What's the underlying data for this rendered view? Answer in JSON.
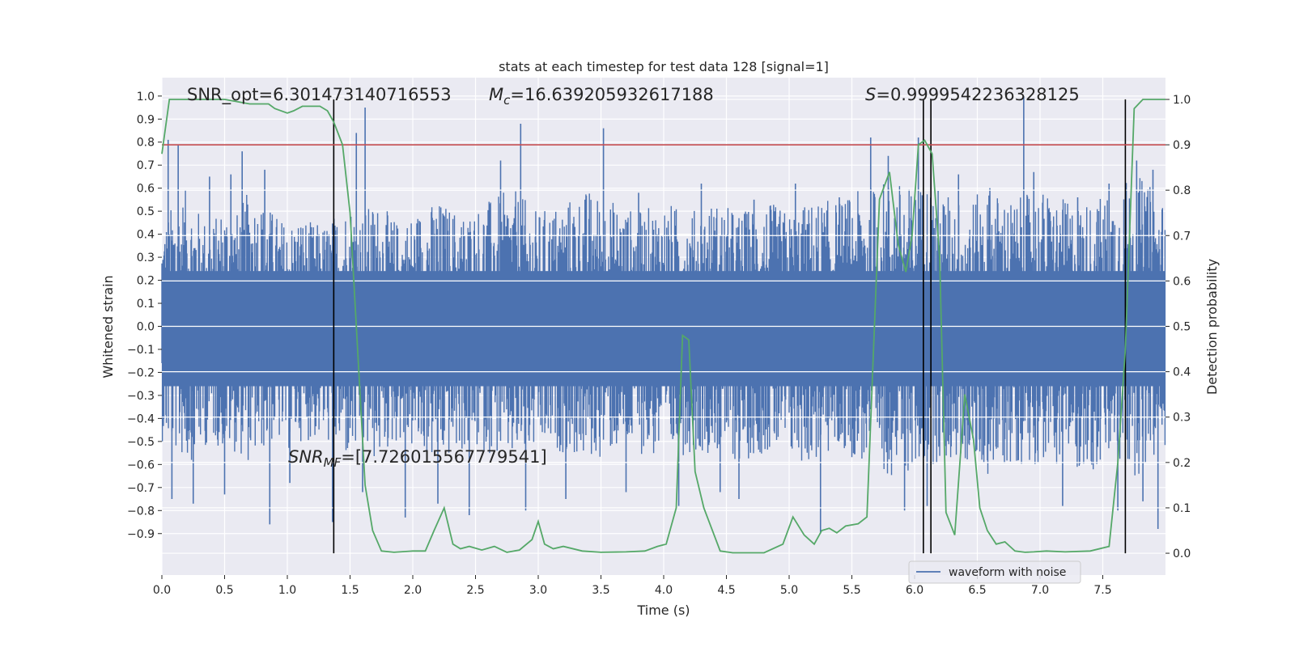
{
  "chart_data": {
    "type": "line",
    "title": "stats at each timestep for test data 128 [signal=1]",
    "xlabel": "Time (s)",
    "ylabel": "Whitened strain",
    "y2label": "Detection probability",
    "xlim": [
      0.0,
      8.0
    ],
    "ylim": [
      -1.08,
      1.08
    ],
    "y2lim": [
      -0.048,
      1.048
    ],
    "x_ticks": [
      0.0,
      0.5,
      1.0,
      1.5,
      2.0,
      2.5,
      3.0,
      3.5,
      4.0,
      4.5,
      5.0,
      5.5,
      6.0,
      6.5,
      7.0,
      7.5
    ],
    "x_tick_labels": [
      "0.0",
      "0.5",
      "1.0",
      "1.5",
      "2.0",
      "2.5",
      "3.0",
      "3.5",
      "4.0",
      "4.5",
      "5.0",
      "5.5",
      "6.0",
      "6.5",
      "7.0",
      "7.5"
    ],
    "y_ticks": [
      1.0,
      0.9,
      0.8,
      0.7,
      0.6,
      0.5,
      0.4,
      0.3,
      0.2,
      0.1,
      0.0,
      -0.1,
      -0.2,
      -0.3,
      -0.4,
      -0.5,
      -0.6,
      -0.7,
      -0.8,
      -0.9
    ],
    "y_tick_labels": [
      "1.0",
      "0.9",
      "0.8",
      "0.7",
      "0.6",
      "0.5",
      "0.4",
      "0.3",
      "0.2",
      "0.1",
      "0.0",
      "−0.1",
      "−0.2",
      "−0.3",
      "−0.4",
      "−0.5",
      "−0.6",
      "−0.7",
      "−0.8",
      "−0.9"
    ],
    "y2_ticks": [
      1.0,
      0.9,
      0.8,
      0.7,
      0.6,
      0.5,
      0.4,
      0.3,
      0.2,
      0.1,
      0.0
    ],
    "y2_tick_labels": [
      "1.0",
      "0.9",
      "0.8",
      "0.7",
      "0.6",
      "0.5",
      "0.4",
      "0.3",
      "0.2",
      "0.1",
      "0.0"
    ],
    "grid": true,
    "legend": {
      "position": "lower-right",
      "entries": [
        {
          "label": "waveform with noise",
          "color": "#4c72b0"
        }
      ]
    },
    "threshold": {
      "value": 0.9,
      "axis": "y2",
      "color": "#c44e52"
    },
    "vertical_lines": [
      1.37,
      6.07,
      6.13,
      7.68
    ],
    "annotations": {
      "snr_opt": "SNR_opt=6.301473140716553",
      "mc": "=16.639205932617188",
      "s": "=0.9999542236328125",
      "snr_mf": "=[7.726015567779541]"
    },
    "series": [
      {
        "name": "waveform with noise",
        "color": "#4c72b0",
        "envelope": {
          "x": [
            0.0,
            0.1,
            0.2,
            0.3,
            0.4,
            0.5,
            0.6,
            0.7,
            0.8,
            0.9,
            1.0,
            1.1,
            1.2,
            1.3,
            1.4,
            1.5,
            1.6,
            1.7,
            1.8,
            1.9,
            2.0,
            2.2,
            2.4,
            2.6,
            2.8,
            3.0,
            3.2,
            3.4,
            3.6,
            3.8,
            4.0,
            4.2,
            4.4,
            4.6,
            4.8,
            5.0,
            5.2,
            5.4,
            5.6,
            5.8,
            6.0,
            6.1,
            6.2,
            6.4,
            6.6,
            6.8,
            7.0,
            7.2,
            7.4,
            7.6,
            7.7,
            7.8,
            7.9,
            8.0
          ],
          "upper": [
            0.45,
            0.55,
            0.6,
            0.5,
            0.45,
            0.55,
            0.5,
            0.6,
            0.55,
            0.5,
            0.45,
            0.5,
            0.45,
            0.45,
            0.5,
            0.55,
            0.5,
            0.55,
            0.5,
            0.45,
            0.5,
            0.55,
            0.5,
            0.55,
            0.6,
            0.5,
            0.55,
            0.6,
            0.55,
            0.5,
            0.55,
            0.5,
            0.55,
            0.5,
            0.55,
            0.5,
            0.55,
            0.55,
            0.6,
            0.65,
            0.6,
            0.65,
            0.6,
            0.55,
            0.6,
            0.55,
            0.6,
            0.55,
            0.55,
            0.6,
            0.65,
            0.65,
            0.6,
            0.55
          ],
          "lower": [
            -0.5,
            -0.55,
            -0.6,
            -0.55,
            -0.5,
            -0.55,
            -0.55,
            -0.6,
            -0.55,
            -0.5,
            -0.55,
            -0.5,
            -0.5,
            -0.5,
            -0.55,
            -0.6,
            -0.55,
            -0.6,
            -0.55,
            -0.5,
            -0.55,
            -0.6,
            -0.55,
            -0.55,
            -0.6,
            -0.55,
            -0.55,
            -0.6,
            -0.55,
            -0.55,
            -0.6,
            -0.55,
            -0.55,
            -0.6,
            -0.55,
            -0.6,
            -0.6,
            -0.55,
            -0.6,
            -0.65,
            -0.65,
            -0.6,
            -0.6,
            -0.6,
            -0.65,
            -0.6,
            -0.6,
            -0.6,
            -0.65,
            -0.6,
            -0.65,
            -0.65,
            -0.6,
            -0.55
          ]
        },
        "spikes": [
          [
            0.05,
            0.81
          ],
          [
            0.08,
            -0.75
          ],
          [
            0.13,
            0.79
          ],
          [
            0.25,
            -0.77
          ],
          [
            0.38,
            0.65
          ],
          [
            0.5,
            -0.73
          ],
          [
            0.55,
            0.66
          ],
          [
            0.64,
            0.76
          ],
          [
            0.82,
            0.68
          ],
          [
            0.86,
            -0.86
          ],
          [
            1.02,
            -0.68
          ],
          [
            1.36,
            -0.85
          ],
          [
            1.55,
            0.84
          ],
          [
            1.62,
            0.95
          ],
          [
            1.6,
            -0.72
          ],
          [
            1.94,
            -0.83
          ],
          [
            2.2,
            -0.77
          ],
          [
            2.45,
            -0.82
          ],
          [
            2.7,
            0.72
          ],
          [
            2.86,
            0.88
          ],
          [
            2.9,
            -0.8
          ],
          [
            3.22,
            -0.75
          ],
          [
            3.52,
            0.86
          ],
          [
            3.7,
            -0.72
          ],
          [
            3.8,
            0.58
          ],
          [
            4.12,
            -0.78
          ],
          [
            4.3,
            0.62
          ],
          [
            4.45,
            -0.72
          ],
          [
            4.6,
            -0.75
          ],
          [
            4.72,
            0.55
          ],
          [
            5.05,
            0.62
          ],
          [
            5.25,
            -0.9
          ],
          [
            5.4,
            0.56
          ],
          [
            5.65,
            0.82
          ],
          [
            5.79,
            0.74
          ],
          [
            5.92,
            -0.8
          ],
          [
            6.03,
            0.82
          ],
          [
            6.1,
            -0.78
          ],
          [
            6.35,
            0.66
          ],
          [
            6.6,
            0.6
          ],
          [
            6.87,
            1.0
          ],
          [
            6.95,
            0.67
          ],
          [
            7.18,
            -0.78
          ],
          [
            7.3,
            0.56
          ],
          [
            7.55,
            0.62
          ],
          [
            7.62,
            -0.8
          ],
          [
            7.77,
            0.72
          ],
          [
            7.82,
            -0.76
          ],
          [
            7.9,
            0.68
          ],
          [
            7.94,
            -0.88
          ]
        ]
      },
      {
        "name": "",
        "axis": "y2",
        "color": "#55a868",
        "x": [
          0.0,
          0.06,
          0.1,
          0.3,
          0.5,
          0.7,
          0.85,
          0.9,
          1.0,
          1.05,
          1.12,
          1.2,
          1.26,
          1.32,
          1.37,
          1.44,
          1.5,
          1.56,
          1.62,
          1.68,
          1.75,
          1.85,
          2.0,
          2.1,
          2.17,
          2.25,
          2.32,
          2.38,
          2.45,
          2.55,
          2.65,
          2.75,
          2.85,
          2.95,
          3.0,
          3.05,
          3.12,
          3.2,
          3.35,
          3.5,
          3.7,
          3.85,
          3.95,
          4.02,
          4.1,
          4.15,
          4.2,
          4.25,
          4.32,
          4.45,
          4.55,
          4.65,
          4.8,
          4.95,
          5.03,
          5.12,
          5.2,
          5.26,
          5.32,
          5.38,
          5.45,
          5.55,
          5.62,
          5.72,
          5.8,
          5.87,
          5.93,
          5.98,
          6.03,
          6.08,
          6.14,
          6.2,
          6.25,
          6.32,
          6.4,
          6.47,
          6.52,
          6.58,
          6.65,
          6.72,
          6.8,
          6.88,
          6.95,
          7.05,
          7.2,
          7.4,
          7.55,
          7.62,
          7.68,
          7.75,
          7.82,
          7.88,
          8.0
        ],
        "y": [
          0.88,
          1.0,
          1.0,
          1.0,
          1.0,
          0.99,
          0.99,
          0.98,
          0.97,
          0.975,
          0.985,
          0.985,
          0.985,
          0.975,
          0.95,
          0.9,
          0.75,
          0.45,
          0.15,
          0.05,
          0.005,
          0.002,
          0.005,
          0.005,
          0.05,
          0.1,
          0.02,
          0.01,
          0.015,
          0.007,
          0.015,
          0.002,
          0.007,
          0.03,
          0.07,
          0.02,
          0.01,
          0.015,
          0.005,
          0.002,
          0.003,
          0.005,
          0.015,
          0.02,
          0.1,
          0.48,
          0.47,
          0.18,
          0.1,
          0.005,
          0.001,
          0.001,
          0.001,
          0.02,
          0.08,
          0.04,
          0.02,
          0.05,
          0.055,
          0.045,
          0.06,
          0.065,
          0.08,
          0.78,
          0.84,
          0.68,
          0.62,
          0.7,
          0.9,
          0.91,
          0.88,
          0.65,
          0.09,
          0.04,
          0.35,
          0.25,
          0.1,
          0.05,
          0.02,
          0.025,
          0.005,
          0.002,
          0.003,
          0.005,
          0.003,
          0.005,
          0.015,
          0.2,
          0.45,
          0.98,
          1.0,
          1.0,
          1.0
        ]
      }
    ]
  }
}
